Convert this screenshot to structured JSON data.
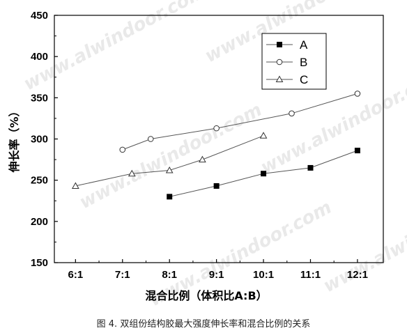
{
  "chart_data": {
    "type": "line",
    "title": "",
    "xlabel": "混合比例（体积比A:B）",
    "ylabel": "伸长率（%）",
    "categories": [
      "6:1",
      "7:1",
      "8:1",
      "9:1",
      "10:1",
      "11:1",
      "12:1"
    ],
    "ylim": [
      150,
      450
    ],
    "yticks": [
      150,
      200,
      250,
      300,
      350,
      400,
      450
    ],
    "grid": false,
    "legend_position": "top-right",
    "series": [
      {
        "name": "A",
        "marker": "filled-square",
        "points": [
          {
            "x": 8.0,
            "y": 230
          },
          {
            "x": 9.0,
            "y": 243
          },
          {
            "x": 10.0,
            "y": 258
          },
          {
            "x": 11.0,
            "y": 265
          },
          {
            "x": 12.0,
            "y": 286
          }
        ]
      },
      {
        "name": "B",
        "marker": "open-circle",
        "points": [
          {
            "x": 7.0,
            "y": 287
          },
          {
            "x": 7.6,
            "y": 300
          },
          {
            "x": 9.0,
            "y": 313
          },
          {
            "x": 10.6,
            "y": 331
          },
          {
            "x": 12.0,
            "y": 355
          }
        ]
      },
      {
        "name": "C",
        "marker": "open-triangle",
        "points": [
          {
            "x": 6.0,
            "y": 243
          },
          {
            "x": 7.2,
            "y": 258
          },
          {
            "x": 8.0,
            "y": 262
          },
          {
            "x": 8.7,
            "y": 275
          },
          {
            "x": 10.0,
            "y": 304
          }
        ]
      }
    ]
  },
  "caption": "图 4. 双组份结构胶最大强度伸长率和混合比例的关系",
  "watermark": "www.alwindoor.com",
  "colors": {
    "axis": "#000000",
    "series_line": "#555555",
    "watermark": "#d8d8d8"
  }
}
